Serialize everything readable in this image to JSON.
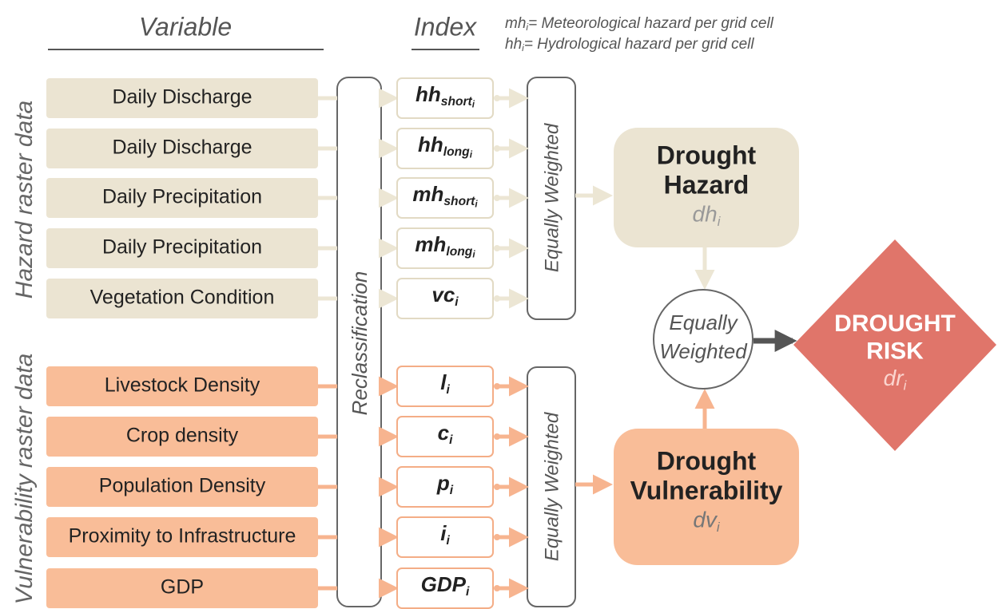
{
  "header": {
    "variable": "Variable",
    "index": "Index",
    "legend": [
      {
        "symbol": "mh",
        "sub": "i",
        "text": "= Meteorological hazard per grid cell"
      },
      {
        "symbol": "hh",
        "sub": "i",
        "text": "= Hydrological hazard per grid cell"
      }
    ]
  },
  "hazard": {
    "label": "Hazard raster data",
    "variables": [
      "Daily Discharge",
      "Daily Discharge",
      "Daily Precipitation",
      "Daily Precipitation",
      "Vegetation Condition"
    ],
    "indices": [
      {
        "base": "hh",
        "sub": "short",
        "subsub": "i"
      },
      {
        "base": "hh",
        "sub": "long",
        "subsub": "i"
      },
      {
        "base": "mh",
        "sub": "short",
        "subsub": "i"
      },
      {
        "base": "mh",
        "sub": "long",
        "subsub": "i"
      },
      {
        "base": "vc",
        "sub": "i"
      }
    ]
  },
  "vulnerability": {
    "label": "Vulnerability raster data",
    "variables": [
      "Livestock Density",
      "Crop density",
      "Population Density",
      "Proximity to Infrastructure",
      "GDP"
    ],
    "indices": [
      {
        "base": "l",
        "sub": "i"
      },
      {
        "base": "c",
        "sub": "i"
      },
      {
        "base": "p",
        "sub": "i"
      },
      {
        "base": "i",
        "sub": "i"
      },
      {
        "base": "GDP",
        "sub": "i"
      }
    ]
  },
  "reclassification": "Reclassification",
  "weighting": {
    "hazard": "Equally Weighted",
    "vulnerability": "Equally Weighted",
    "combined": [
      "Equally",
      "Weighted"
    ]
  },
  "drought_hazard": {
    "title": [
      "Drought",
      "Hazard"
    ],
    "symbol": {
      "base": "dh",
      "sub": "i"
    }
  },
  "drought_vulnerability": {
    "title": [
      "Drought",
      "Vulnerability"
    ],
    "symbol": {
      "base": "dv",
      "sub": "i"
    }
  },
  "drought_risk": {
    "title": [
      "DROUGHT",
      "RISK"
    ],
    "symbol": {
      "base": "dr",
      "sub": "i"
    }
  }
}
